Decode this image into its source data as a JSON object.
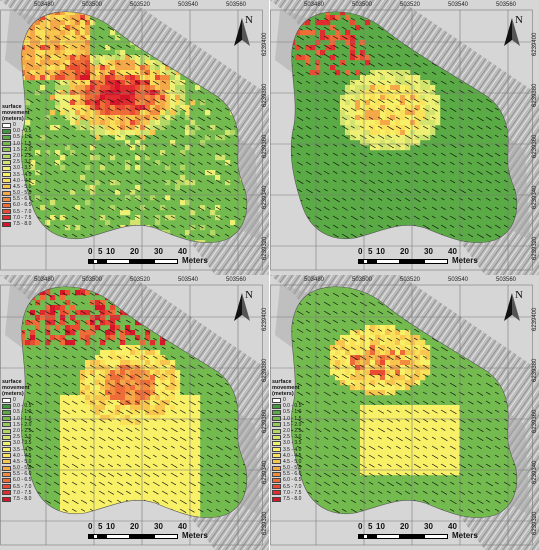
{
  "panels": [
    {
      "x_ticks": [
        "503480",
        "503500",
        "503520",
        "503540",
        "503560"
      ],
      "y_ticks": [
        "6239400",
        "6239380",
        "6239360",
        "6239340",
        "6239320"
      ],
      "legend_shown": true,
      "scale_shown": true,
      "hot": "red-north"
    },
    {
      "x_ticks": [
        "503480",
        "503500",
        "503520",
        "503540",
        "503560"
      ],
      "y_ticks": [
        "6239400",
        "6239380",
        "6239360",
        "6239340",
        "6239320"
      ],
      "legend_shown": false,
      "scale_shown": true,
      "hot": "yellow-center"
    },
    {
      "x_ticks": [
        "503480",
        "503500",
        "503520",
        "503540",
        "503560"
      ],
      "y_ticks": [
        "6239400",
        "6239380",
        "6239360",
        "6239340",
        "6239320"
      ],
      "legend_shown": true,
      "scale_shown": true,
      "hot": "red-orange"
    },
    {
      "x_ticks": [
        "503480",
        "503500",
        "503520",
        "503540",
        "503560"
      ],
      "y_ticks": [
        "6239400",
        "6239380",
        "6239360",
        "6239340",
        "6239320"
      ],
      "legend_shown": true,
      "scale_shown": true,
      "hot": "orange-north"
    }
  ],
  "legend": {
    "title_line1": "surface",
    "title_line2": "movement",
    "title_line3": "(meters)",
    "classes": [
      {
        "label": "0",
        "color": "#ffffff"
      },
      {
        "label": "0.0 - 0.5",
        "color": "#3f9a3a"
      },
      {
        "label": "0.5 - 1.0",
        "color": "#5aab45"
      },
      {
        "label": "1.0 - 1.5",
        "color": "#74bb4f"
      },
      {
        "label": "1.5 - 2.0",
        "color": "#93c95a"
      },
      {
        "label": "2.0 - 2.5",
        "color": "#b3d765"
      },
      {
        "label": "2.5 - 3.0",
        "color": "#d3e46e"
      },
      {
        "label": "3.0 - 3.5",
        "color": "#eef073"
      },
      {
        "label": "3.5 - 4.0",
        "color": "#f8f066"
      },
      {
        "label": "4.0 - 4.5",
        "color": "#fbe05a"
      },
      {
        "label": "4.5 - 5.0",
        "color": "#f8c54e"
      },
      {
        "label": "5.0 - 5.5",
        "color": "#f5a847"
      },
      {
        "label": "5.5 - 6.0",
        "color": "#f28a3f"
      },
      {
        "label": "6.0 - 6.5",
        "color": "#ee6c38"
      },
      {
        "label": "6.5 - 7.0",
        "color": "#e94c33"
      },
      {
        "label": "7.0 - 7.5",
        "color": "#e02c2e"
      },
      {
        "label": "7.5 - 8.0",
        "color": "#d6142a"
      }
    ]
  },
  "north_label": "N",
  "scale": {
    "ticks": [
      "0",
      "5",
      "10",
      "20",
      "30",
      "40"
    ],
    "unit": "Meters"
  }
}
